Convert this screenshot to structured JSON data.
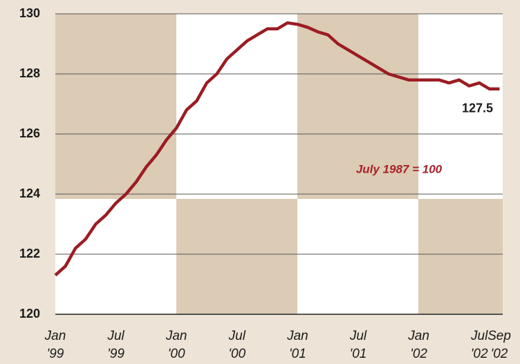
{
  "chart_data": {
    "type": "line",
    "annotation": "July 1987 = 100",
    "categories": [
      "Jan\n'99",
      null,
      null,
      null,
      null,
      null,
      "Jul\n'99",
      null,
      null,
      null,
      null,
      null,
      "Jan\n'00",
      null,
      null,
      null,
      null,
      null,
      "Jul\n'00",
      null,
      null,
      null,
      null,
      null,
      "Jan\n'01",
      null,
      null,
      null,
      null,
      null,
      "Jul\n'01",
      null,
      null,
      null,
      null,
      null,
      "Jan\n'02",
      null,
      null,
      null,
      null,
      null,
      "Jul\n'02",
      null,
      "Sep\n'02"
    ],
    "series": [
      {
        "color": "#9b1c23",
        "values": [
          121.3,
          121.6,
          122.2,
          122.5,
          123.0,
          123.3,
          123.7,
          124.0,
          124.4,
          124.9,
          125.3,
          125.8,
          126.2,
          126.8,
          127.1,
          127.7,
          128.0,
          128.5,
          128.8,
          129.1,
          129.3,
          129.5,
          129.5,
          129.7,
          129.65,
          129.55,
          129.4,
          129.3,
          129.0,
          128.8,
          128.6,
          128.4,
          128.2,
          128.0,
          127.9,
          127.8,
          127.8,
          127.8,
          127.8,
          127.7,
          127.8,
          127.6,
          127.7,
          127.5,
          127.5
        ]
      }
    ],
    "ylim": [
      120,
      130
    ],
    "yticks": [
      120,
      122,
      124,
      126,
      128,
      130
    ],
    "grid": true
  }
}
